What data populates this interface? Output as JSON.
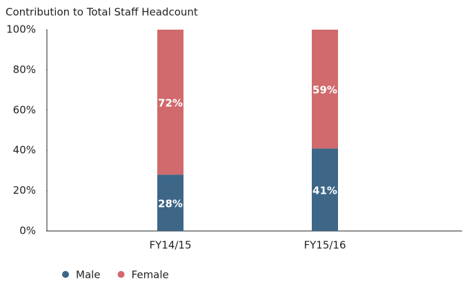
{
  "chart_data": {
    "type": "stacked_bar",
    "title": "Contribution to Total Staff Headcount",
    "categories": [
      "FY14/15",
      "FY15/16"
    ],
    "series": [
      {
        "name": "Male",
        "color": "#3d6687",
        "values": [
          28,
          41
        ],
        "value_labels": [
          "28%",
          "41%"
        ]
      },
      {
        "name": "Female",
        "color": "#d06a6d",
        "values": [
          72,
          59
        ],
        "value_labels": [
          "72%",
          "59%"
        ]
      }
    ],
    "ylim": [
      0,
      100
    ],
    "yticks": [
      {
        "value": 0,
        "label": "0%"
      },
      {
        "value": 20,
        "label": "20%"
      },
      {
        "value": 40,
        "label": "40%"
      },
      {
        "value": 60,
        "label": "60%"
      },
      {
        "value": 80,
        "label": "80%"
      },
      {
        "value": 100,
        "label": "100%"
      }
    ],
    "grid": false,
    "legend": "bottom"
  }
}
